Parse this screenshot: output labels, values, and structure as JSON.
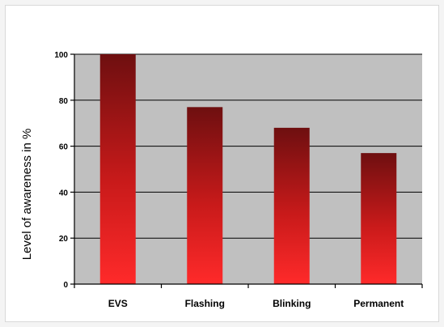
{
  "chart_data": {
    "type": "bar",
    "title": "",
    "xlabel": "",
    "ylabel": "Level of awareness in %",
    "categories": [
      "EVS",
      "Flashing",
      "Blinking",
      "Permanent"
    ],
    "values": [
      100,
      77,
      68,
      57
    ],
    "ylim": [
      0,
      100
    ],
    "yticks": [
      0,
      20,
      40,
      60,
      80,
      100
    ],
    "grid": true,
    "legend": "none",
    "colors": {
      "bar_top": "#6e0f10",
      "bar_bottom": "#ff2a2a",
      "plot_background": "#c0c0c0",
      "gridline": "#000000"
    }
  }
}
